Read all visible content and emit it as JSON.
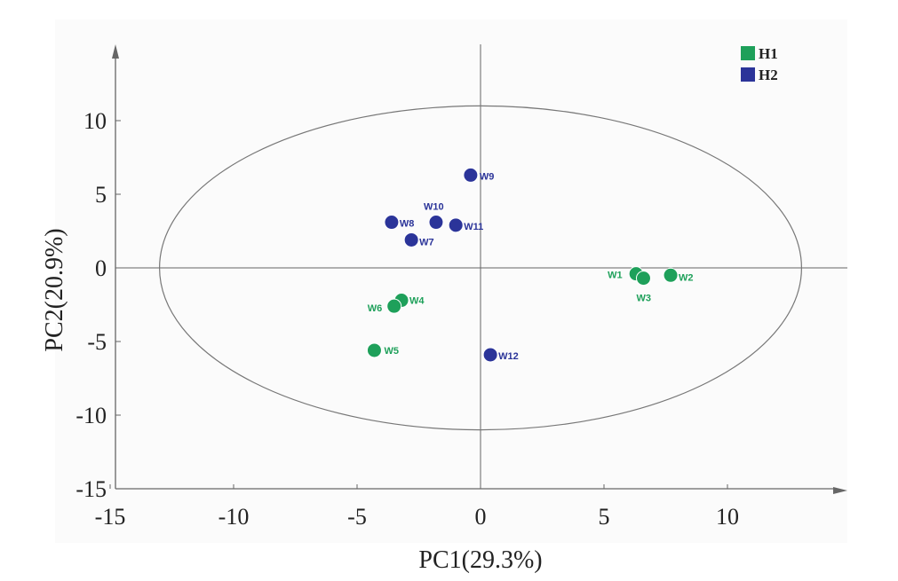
{
  "chart_data": {
    "type": "scatter",
    "xlabel": "PC1(29.3%)",
    "ylabel": "PC2(20.9%)",
    "xlim": [
      -15,
      15
    ],
    "ylim": [
      -15,
      15
    ],
    "x_ticks": [
      -15,
      -10,
      -5,
      0,
      5,
      10
    ],
    "y_ticks": [
      -15,
      -10,
      -5,
      0,
      5,
      10
    ],
    "x_tick_labels": [
      "-15",
      "-10",
      "-5",
      "0",
      "5",
      "10"
    ],
    "y_tick_labels": [
      "-15",
      "-10",
      "-5",
      "0",
      "5",
      "10"
    ],
    "legend": {
      "placement": "top-right"
    },
    "ellipse": {
      "center": [
        0,
        0
      ],
      "rx": 13,
      "ry": 11
    },
    "series": [
      {
        "name": "H1",
        "color": "#1ea05a",
        "points": [
          {
            "label": "W1",
            "x": 6.3,
            "y": -0.4
          },
          {
            "label": "W2",
            "x": 7.7,
            "y": -0.5
          },
          {
            "label": "W3",
            "x": 6.6,
            "y": -0.7
          },
          {
            "label": "W4",
            "x": -3.2,
            "y": -2.2
          },
          {
            "label": "W5",
            "x": -4.3,
            "y": -5.6
          },
          {
            "label": "W6",
            "x": -3.5,
            "y": -2.6
          }
        ]
      },
      {
        "name": "H2",
        "color": "#2b3499",
        "points": [
          {
            "label": "W7",
            "x": -2.8,
            "y": 1.9
          },
          {
            "label": "W8",
            "x": -3.6,
            "y": 3.1
          },
          {
            "label": "W9",
            "x": -0.4,
            "y": 6.3
          },
          {
            "label": "W10",
            "x": -1.8,
            "y": 3.1
          },
          {
            "label": "W11",
            "x": -1.0,
            "y": 2.9
          },
          {
            "label": "W12",
            "x": 0.4,
            "y": -5.9
          }
        ]
      }
    ]
  }
}
